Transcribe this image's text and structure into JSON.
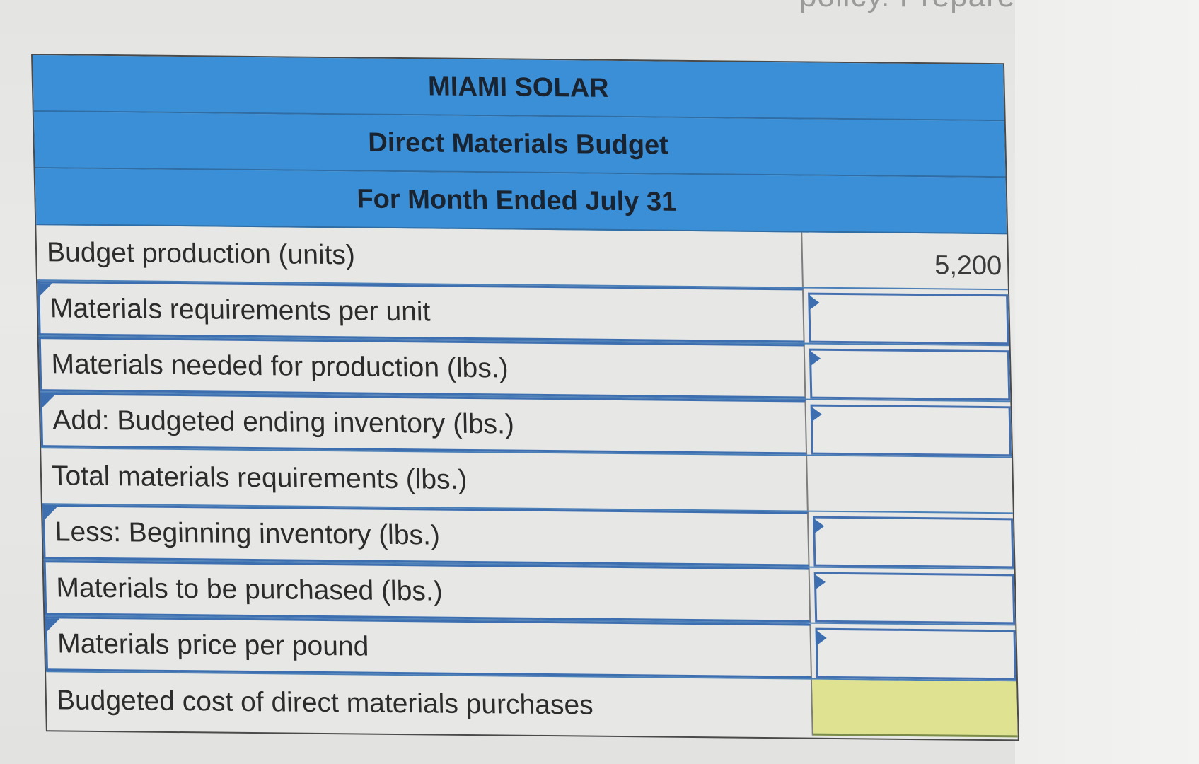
{
  "background_text": "policy. Prepare a direct m",
  "header": {
    "company": "MIAMI SOLAR",
    "title": "Direct Materials Budget",
    "period": "For Month Ended July 31"
  },
  "rows": [
    {
      "label": "Budget production (units)",
      "value": "5,200",
      "input": false
    },
    {
      "label": "Materials requirements per unit",
      "value": "",
      "input": true
    },
    {
      "label": "Materials needed for production (lbs.)",
      "value": "",
      "input": true
    },
    {
      "label": "Add: Budgeted ending inventory (lbs.)",
      "value": "",
      "input": true
    },
    {
      "label": "Total materials requirements (lbs.)",
      "value": "",
      "input": false
    },
    {
      "label": "Less: Beginning inventory (lbs.)",
      "value": "",
      "input": true
    },
    {
      "label": "Materials to be purchased (lbs.)",
      "value": "",
      "input": true
    },
    {
      "label": "Materials price per pound",
      "value": "",
      "input": true
    },
    {
      "label": "Budgeted cost of direct materials purchases",
      "value": "",
      "input": false
    }
  ],
  "colors": {
    "header_blue": "#3b8fd6",
    "input_border": "#3d6fb0",
    "result_yellow": "#dfe290"
  }
}
